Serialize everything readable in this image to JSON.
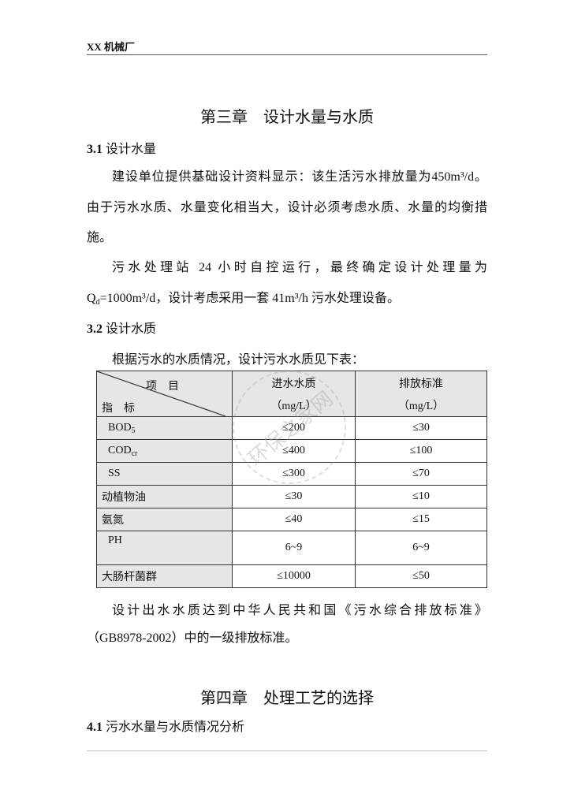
{
  "header": {
    "title": "XX 机械厂"
  },
  "chapter3": {
    "title": "第三章　设计水量与水质",
    "s31": {
      "num": "3.1",
      "title": "设计水量"
    },
    "p1": [
      "建设单位提供基础设计资料显示：该生活污水排放量为450m³/d。",
      "由于污水水质、水量变化相当大，设计必须考虑水质、水量的均衡措",
      "施。"
    ],
    "p2": {
      "line1": "污水处理站 24 小时自控运行，最终确定设计处理量为",
      "q": "Q",
      "q_sub": "d",
      "line2": "=1000m³/d，设计考虑采用一套 41m³/h 污水处理设备。"
    },
    "s32": {
      "num": "3.2",
      "title": "设计水质"
    },
    "intro": "根据污水的水质情况，设计污水水质见下表：",
    "table": {
      "corner_top": "项　目",
      "corner_bottom": "指　标",
      "col2": [
        "进水水质",
        "（mg/L）"
      ],
      "col3": [
        "排放标准",
        "（mg/L）"
      ],
      "rows": [
        {
          "name": "BOD",
          "sub": "5",
          "in": "≤200",
          "out": "≤30"
        },
        {
          "name": "COD",
          "sub": "cr",
          "in": "≤400",
          "out": "≤100"
        },
        {
          "name": "SS",
          "sub": "",
          "in": "≤300",
          "out": "≤70"
        },
        {
          "name": "动植物油",
          "sub": "",
          "in": "≤30",
          "out": "≤10"
        },
        {
          "name": "氨氮",
          "sub": "",
          "in": "≤40",
          "out": "≤15"
        },
        {
          "name": "PH",
          "sub": "",
          "in": "6~9",
          "out": "6~9"
        },
        {
          "name": "大肠杆菌群",
          "sub": "",
          "in": "≤10000",
          "out": "≤50"
        }
      ]
    },
    "watermark": "环保之家网",
    "after": [
      "设计出水水质达到中华人民共和国《污水综合排放标准》",
      "（GB8978-2002）中的一级排放标准。"
    ]
  },
  "chapter4": {
    "title": "第四章　处理工艺的选择",
    "s41": {
      "num": "4.1",
      "title": "污水水量与水质情况分析"
    }
  }
}
